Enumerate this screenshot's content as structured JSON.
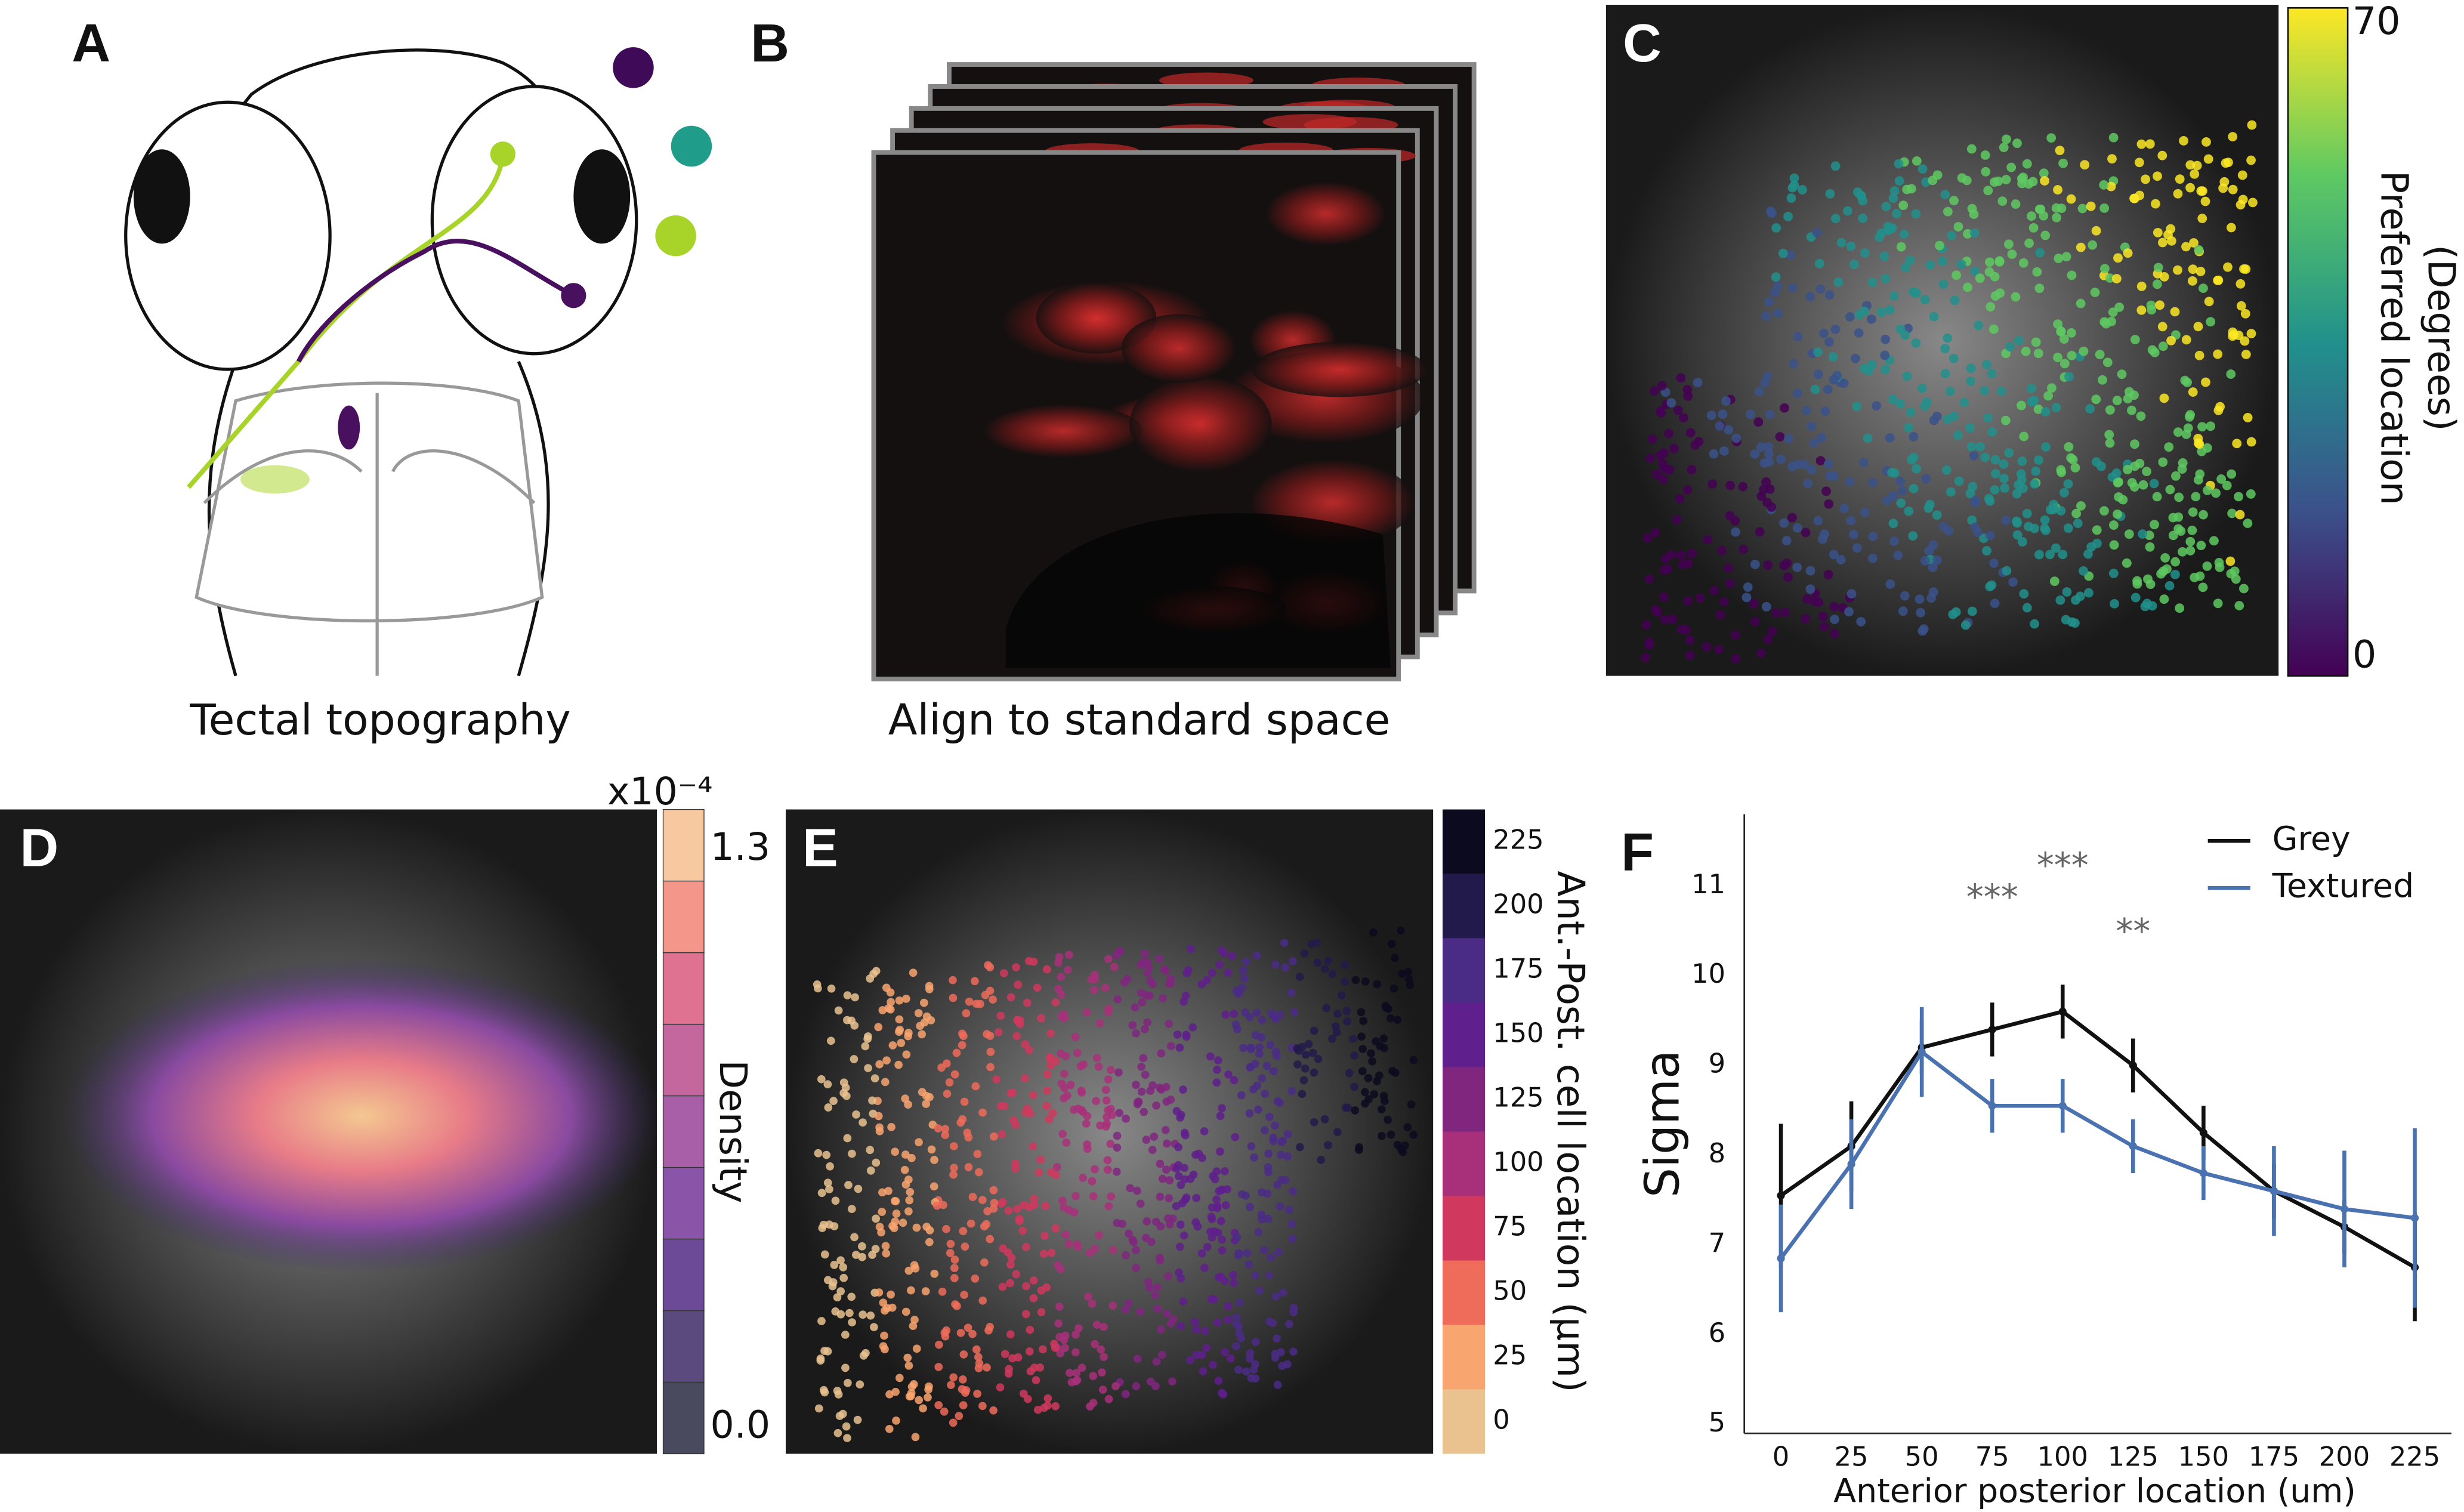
{
  "panel_a": {
    "letter": "A",
    "caption": "Tectal topography"
  },
  "panel_b": {
    "letter": "B",
    "caption": "Align to standard space"
  },
  "panel_c": {
    "letter": "C",
    "colorbar_label": [
      "Preferred location",
      "(Degrees)"
    ],
    "clim": [
      0,
      70
    ],
    "ticks": [
      0,
      70
    ]
  },
  "panel_d": {
    "letter": "D",
    "colorbar_label": "Density",
    "multiplier": "x10⁻⁴",
    "clim": [
      -0.06,
      1.39
    ],
    "ticks": [
      {
        "value": 0,
        "label": "0.0"
      },
      1.3
    ],
    "colors": [
      "#4a4a5e",
      "#5a4a7e",
      "#6d4a98",
      "#8a55a8",
      "#a85fa8",
      "#c4679f",
      "#de7290",
      "#f4978a",
      "#f8c9a0"
    ]
  },
  "panel_e": {
    "letter": "E",
    "colorbar_label": "Ant.-Post. cell location (μm)",
    "clim": [
      -12.5,
      237.5
    ],
    "ticks": [
      0,
      25,
      50,
      75,
      100,
      125,
      150,
      175,
      200,
      225
    ],
    "colors": [
      "#eac28f",
      "#f9a570",
      "#ef6b5a",
      "#d0385e",
      "#a8307a",
      "#80267e",
      "#5f1f8c",
      "#4a2b86",
      "#221a4a",
      "#0c0a1e"
    ]
  },
  "chart_data": {
    "type": "line",
    "letter": "F",
    "x_label": "Anterior posterior location (um)",
    "y_label": "Sigma",
    "x": [
      0,
      25,
      50,
      75,
      100,
      125,
      150,
      175,
      200,
      225
    ],
    "xlim": [
      -13,
      238
    ],
    "xticks": [
      0,
      25,
      50,
      75,
      100,
      125,
      150,
      175,
      200,
      225
    ],
    "ylim": [
      4.9,
      11.8
    ],
    "yticks": [
      5,
      6,
      7,
      8,
      9,
      10,
      11
    ],
    "legend": "upper right",
    "series": [
      {
        "name": "Grey",
        "color": "#111111",
        "values": [
          7.55,
          8.1,
          9.2,
          9.4,
          9.6,
          9.0,
          8.25,
          7.6,
          7.2,
          6.75
        ],
        "errors": [
          0.8,
          0.5,
          0.3,
          0.3,
          0.3,
          0.3,
          0.3,
          0.3,
          0.3,
          0.6
        ]
      },
      {
        "name": "Textured",
        "color": "#4a72b0",
        "values": [
          6.85,
          7.9,
          9.15,
          8.55,
          8.55,
          8.1,
          7.8,
          7.6,
          7.4,
          7.3
        ],
        "errors": [
          0.6,
          0.5,
          0.5,
          0.3,
          0.3,
          0.3,
          0.3,
          0.5,
          0.65,
          1.0
        ]
      }
    ],
    "annotations": [
      {
        "text": "***",
        "x": 75
      },
      {
        "text": "***",
        "x": 100
      },
      {
        "text": "**",
        "x": 125
      }
    ]
  }
}
